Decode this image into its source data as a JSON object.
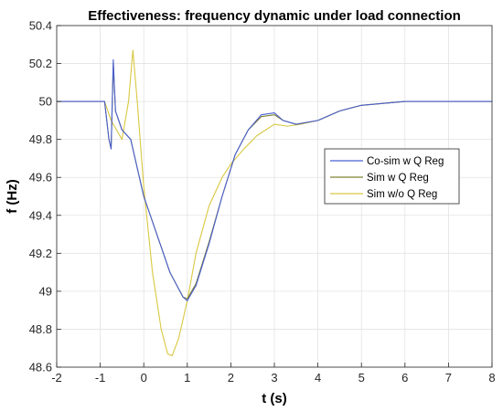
{
  "chart_data": {
    "type": "line",
    "title": "Effectiveness: frequency dynamic under load connection",
    "xlabel": "t (s)",
    "ylabel": "f (Hz)",
    "xlim": [
      -2,
      8
    ],
    "ylim": [
      48.6,
      50.4
    ],
    "xticks": [
      "-2",
      "-1",
      "0",
      "1",
      "2",
      "3",
      "4",
      "5",
      "6",
      "7",
      "8"
    ],
    "yticks": [
      "48.6",
      "48.8",
      "49",
      "49.2",
      "49.4",
      "49.6",
      "49.8",
      "50",
      "50.2",
      "50.4"
    ],
    "grid": true,
    "legend_position": "right",
    "series": [
      {
        "name": "Co-sim w Q Reg",
        "color": "#4a5fd0",
        "points": [
          [
            -2,
            50.0
          ],
          [
            -0.9,
            50.0
          ],
          [
            -0.8,
            49.8
          ],
          [
            -0.75,
            49.75
          ],
          [
            -0.7,
            50.22
          ],
          [
            -0.65,
            49.95
          ],
          [
            -0.5,
            49.85
          ],
          [
            -0.3,
            49.8
          ],
          [
            0,
            49.5
          ],
          [
            0.3,
            49.3
          ],
          [
            0.6,
            49.1
          ],
          [
            0.9,
            48.97
          ],
          [
            1.0,
            48.95
          ],
          [
            1.2,
            49.03
          ],
          [
            1.5,
            49.25
          ],
          [
            1.8,
            49.5
          ],
          [
            2.1,
            49.72
          ],
          [
            2.4,
            49.85
          ],
          [
            2.7,
            49.93
          ],
          [
            3.0,
            49.94
          ],
          [
            3.2,
            49.9
          ],
          [
            3.5,
            49.88
          ],
          [
            4.0,
            49.9
          ],
          [
            4.5,
            49.95
          ],
          [
            5.0,
            49.98
          ],
          [
            6.0,
            50.0
          ],
          [
            7.0,
            50.0
          ],
          [
            8.0,
            50.0
          ]
        ]
      },
      {
        "name": "Sim w Q Reg",
        "color": "#7f8232",
        "points": [
          [
            -2,
            50.0
          ],
          [
            -0.9,
            50.0
          ],
          [
            -0.8,
            49.8
          ],
          [
            -0.75,
            49.75
          ],
          [
            -0.7,
            50.2
          ],
          [
            -0.65,
            49.95
          ],
          [
            -0.5,
            49.85
          ],
          [
            -0.3,
            49.8
          ],
          [
            0,
            49.5
          ],
          [
            0.3,
            49.3
          ],
          [
            0.6,
            49.1
          ],
          [
            0.9,
            48.97
          ],
          [
            1.0,
            48.96
          ],
          [
            1.2,
            49.04
          ],
          [
            1.5,
            49.26
          ],
          [
            1.8,
            49.5
          ],
          [
            2.1,
            49.72
          ],
          [
            2.4,
            49.85
          ],
          [
            2.7,
            49.92
          ],
          [
            3.0,
            49.93
          ],
          [
            3.2,
            49.9
          ],
          [
            3.5,
            49.88
          ],
          [
            4.0,
            49.9
          ],
          [
            4.5,
            49.95
          ],
          [
            5.0,
            49.98
          ],
          [
            6.0,
            50.0
          ],
          [
            7.0,
            50.0
          ],
          [
            8.0,
            50.0
          ]
        ]
      },
      {
        "name": "Sim w/o Q Reg",
        "color": "#d9c842",
        "points": [
          [
            -2,
            50.0
          ],
          [
            -0.9,
            50.0
          ],
          [
            -0.75,
            49.9
          ],
          [
            -0.5,
            49.8
          ],
          [
            -0.35,
            50.0
          ],
          [
            -0.25,
            50.27
          ],
          [
            -0.15,
            50.0
          ],
          [
            0,
            49.55
          ],
          [
            0.2,
            49.1
          ],
          [
            0.4,
            48.8
          ],
          [
            0.55,
            48.67
          ],
          [
            0.65,
            48.66
          ],
          [
            0.8,
            48.75
          ],
          [
            1.0,
            48.95
          ],
          [
            1.2,
            49.2
          ],
          [
            1.5,
            49.45
          ],
          [
            1.8,
            49.6
          ],
          [
            2.0,
            49.67
          ],
          [
            2.3,
            49.75
          ],
          [
            2.6,
            49.82
          ],
          [
            3.0,
            49.88
          ],
          [
            3.3,
            49.87
          ],
          [
            3.6,
            49.88
          ],
          [
            4.0,
            49.9
          ],
          [
            4.5,
            49.95
          ],
          [
            5.0,
            49.98
          ],
          [
            6.0,
            50.0
          ],
          [
            7.0,
            50.0
          ],
          [
            8.0,
            50.0
          ]
        ]
      }
    ]
  }
}
